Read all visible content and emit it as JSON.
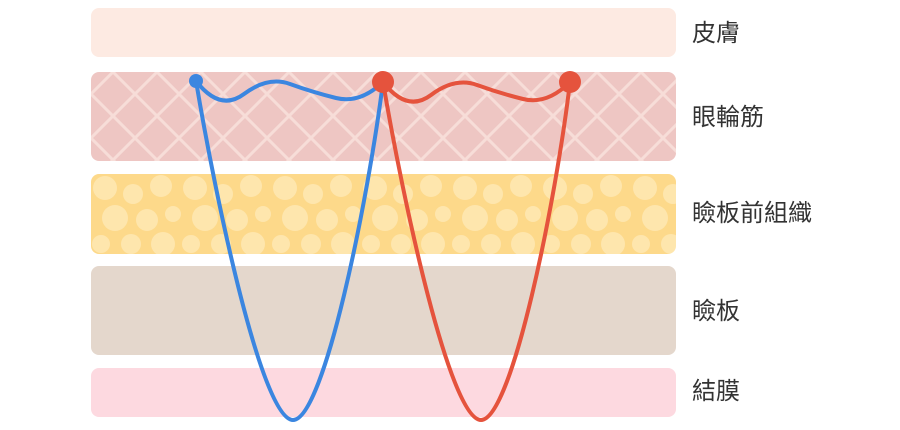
{
  "layers": [
    "皮膚",
    "眼輪筋",
    "瞼板前組織",
    "瞼板",
    "結膜"
  ]
}
